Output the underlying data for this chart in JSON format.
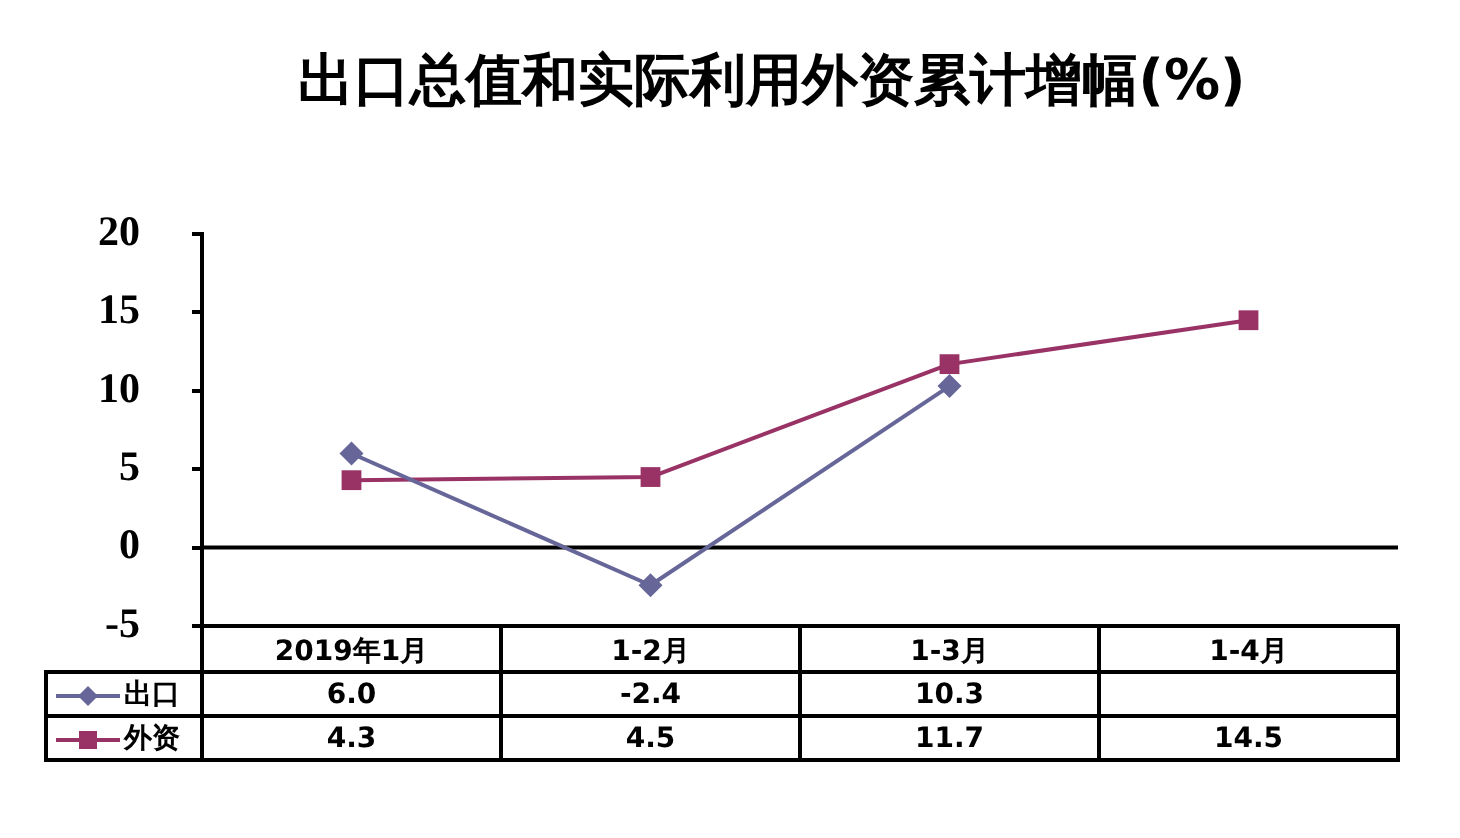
{
  "chart_data": {
    "type": "line",
    "title": "出口总值和实际利用外资累计增幅(%)",
    "categories": [
      "2019年1月",
      "1-2月",
      "1-3月",
      "1-4月"
    ],
    "series": [
      {
        "name": "出口",
        "color": "#666699",
        "marker": "diamond",
        "values": [
          6.0,
          -2.4,
          10.3,
          null
        ],
        "value_labels": [
          "6.0",
          "-2.4",
          "10.3",
          null
        ]
      },
      {
        "name": "外资",
        "color": "#993366",
        "marker": "square",
        "values": [
          4.3,
          4.5,
          11.7,
          14.5
        ],
        "value_labels": [
          "4.3",
          "4.5",
          "11.7",
          "14.5"
        ]
      }
    ],
    "ylim": [
      -5,
      20
    ],
    "yticks": [
      -5,
      0,
      5,
      10,
      15,
      20
    ],
    "grid": false,
    "legend": "bottom left",
    "line_style": "solid",
    "ref_lines": [
      {
        "axis": "y",
        "value": 0,
        "color": "#000000"
      }
    ]
  }
}
